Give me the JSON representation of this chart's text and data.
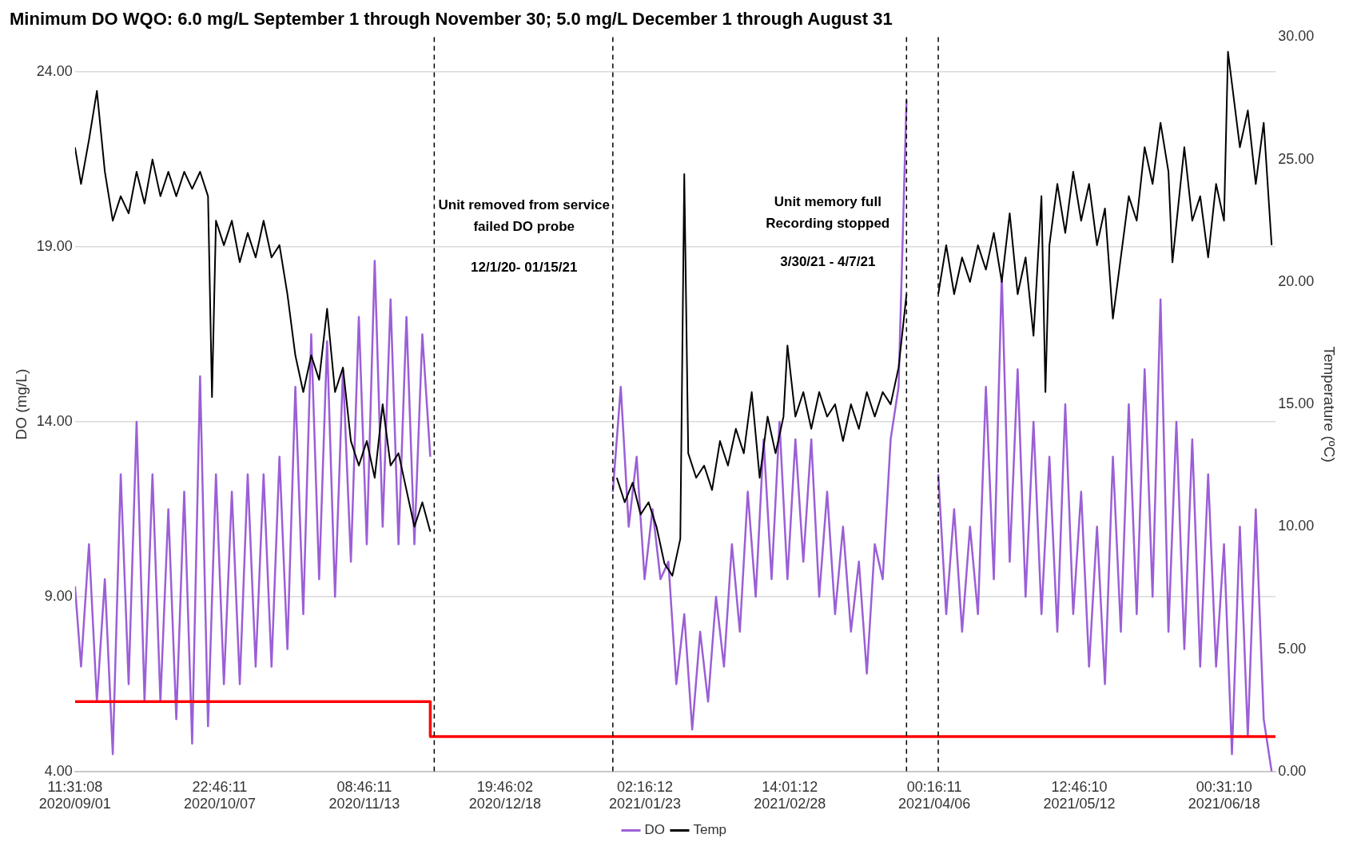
{
  "chart_data": {
    "type": "line",
    "title": "Minimum DO WQO: 6.0 mg/L September 1 through November 30; 5.0 mg/L December 1 through August 31",
    "ylabel": "DO (mg/L)",
    "y2label": "Temperature (ºC)",
    "legend": "bottom",
    "grid": "y",
    "marker": "none",
    "xlim": [
      "2020-09-01T11:31",
      "2021-07-01"
    ],
    "xticks": [
      {
        "value": "2020-09-01T11:31",
        "label": "11:31:08\n2020/09/01"
      },
      {
        "value": "2020-10-07T22:46",
        "label": "22:46:11\n2020/10/07"
      },
      {
        "value": "2020-11-13T08:46",
        "label": "08:46:11\n2020/11/13"
      },
      {
        "value": "2020-12-18T19:46",
        "label": "19:46:02\n2020/12/18"
      },
      {
        "value": "2021-01-23T02:16",
        "label": "02:16:12\n2021/01/23"
      },
      {
        "value": "2021-02-28T14:01",
        "label": "14:01:12\n2021/02/28"
      },
      {
        "value": "2021-04-06T00:16",
        "label": "00:16:11\n2021/04/06"
      },
      {
        "value": "2021-05-12T12:46",
        "label": "12:46:10\n2021/05/12"
      },
      {
        "value": "2021-06-18T00:31",
        "label": "00:31:10\n2021/06/18"
      }
    ],
    "ylim": [
      4,
      25
    ],
    "yticks": [
      {
        "value": 4,
        "label": "4.00"
      },
      {
        "value": 9,
        "label": "9.00"
      },
      {
        "value": 14,
        "label": "14.00"
      },
      {
        "value": 19,
        "label": "19.00"
      },
      {
        "value": 24,
        "label": "24.00"
      }
    ],
    "y2lim": [
      0,
      30
    ],
    "y2ticks": [
      {
        "value": 0,
        "label": "0.00"
      },
      {
        "value": 5,
        "label": "5.00"
      },
      {
        "value": 10,
        "label": "10.00"
      },
      {
        "value": 15,
        "label": "15.00"
      },
      {
        "value": 20,
        "label": "20.00"
      },
      {
        "value": 25,
        "label": "25.00"
      },
      {
        "value": 30,
        "label": "30.00"
      }
    ],
    "series": [
      {
        "name": "DO",
        "color": "#9b5fd6",
        "x": [
          "2020-09-01T11:31",
          "2020-09-03",
          "2020-09-05",
          "2020-09-07",
          "2020-09-09",
          "2020-09-11",
          "2020-09-13",
          "2020-09-15",
          "2020-09-17",
          "2020-09-19",
          "2020-09-21",
          "2020-09-23",
          "2020-09-25",
          "2020-09-27",
          "2020-09-29",
          "2020-10-01",
          "2020-10-03",
          "2020-10-05",
          "2020-10-07",
          "2020-10-09",
          "2020-10-11",
          "2020-10-13",
          "2020-10-15",
          "2020-10-17",
          "2020-10-19",
          "2020-10-21",
          "2020-10-23",
          "2020-10-25",
          "2020-10-27",
          "2020-10-29",
          "2020-10-31",
          "2020-11-02",
          "2020-11-04",
          "2020-11-06",
          "2020-11-08",
          "2020-11-10",
          "2020-11-12",
          "2020-11-14",
          "2020-11-16",
          "2020-11-18",
          "2020-11-20",
          "2020-11-22",
          "2020-11-24",
          "2020-11-26",
          "2020-11-28",
          "2020-11-30",
          "2020-12-15",
          "2021-01-15",
          "2021-01-17",
          "2021-01-19",
          "2021-01-21",
          "2021-01-23",
          "2021-01-25",
          "2021-01-27",
          "2021-01-29",
          "2021-01-31",
          "2021-02-02",
          "2021-02-04",
          "2021-02-06",
          "2021-02-08",
          "2021-02-10",
          "2021-02-12",
          "2021-02-14",
          "2021-02-16",
          "2021-02-18",
          "2021-02-20",
          "2021-02-22",
          "2021-02-24",
          "2021-02-26",
          "2021-02-28",
          "2021-03-02",
          "2021-03-04",
          "2021-03-06",
          "2021-03-08",
          "2021-03-10",
          "2021-03-12",
          "2021-03-14",
          "2021-03-16",
          "2021-03-18",
          "2021-03-20",
          "2021-03-22",
          "2021-03-24",
          "2021-03-26",
          "2021-03-28",
          "2021-03-30",
          "2021-04-03",
          "2021-04-07",
          "2021-04-09",
          "2021-04-11",
          "2021-04-13",
          "2021-04-15",
          "2021-04-17",
          "2021-04-19",
          "2021-04-21",
          "2021-04-23",
          "2021-04-25",
          "2021-04-27",
          "2021-04-29",
          "2021-05-01",
          "2021-05-03",
          "2021-05-05",
          "2021-05-07",
          "2021-05-09",
          "2021-05-11",
          "2021-05-13",
          "2021-05-15",
          "2021-05-17",
          "2021-05-19",
          "2021-05-21",
          "2021-05-23",
          "2021-05-25",
          "2021-05-27",
          "2021-05-29",
          "2021-05-31",
          "2021-06-02",
          "2021-06-04",
          "2021-06-06",
          "2021-06-08",
          "2021-06-10",
          "2021-06-12",
          "2021-06-14",
          "2021-06-16",
          "2021-06-18",
          "2021-06-20",
          "2021-06-22",
          "2021-06-24",
          "2021-06-26",
          "2021-06-28",
          "2021-06-30"
        ],
        "values": [
          9.3,
          7.0,
          10.5,
          6.0,
          9.5,
          4.5,
          12.5,
          6.5,
          14.0,
          6.0,
          12.5,
          6.0,
          11.5,
          5.5,
          12.0,
          4.8,
          15.3,
          5.3,
          12.5,
          6.5,
          12.0,
          6.5,
          12.5,
          7.0,
          12.5,
          7.0,
          13.0,
          7.5,
          15.0,
          8.5,
          16.5,
          9.5,
          16.3,
          9.0,
          15.5,
          10.0,
          17.0,
          10.5,
          18.6,
          11.0,
          17.5,
          10.5,
          17.0,
          10.5,
          16.5,
          13.0,
          null,
          12.0,
          15.0,
          11.0,
          13.0,
          9.5,
          11.5,
          9.5,
          10.0,
          6.5,
          8.5,
          5.2,
          8.0,
          6.0,
          9.0,
          7.0,
          10.5,
          8.0,
          12.0,
          9.0,
          13.5,
          9.5,
          14.0,
          9.5,
          13.5,
          10.0,
          13.5,
          9.0,
          12.0,
          8.5,
          11.0,
          8.0,
          10.0,
          6.8,
          10.5,
          9.5,
          13.5,
          15.0,
          23.2,
          null,
          12.5,
          8.5,
          11.5,
          8.0,
          11.0,
          8.5,
          15.0,
          9.5,
          18.2,
          10.0,
          15.5,
          9.0,
          14.0,
          8.5,
          13.0,
          8.0,
          14.5,
          8.5,
          12.0,
          7.0,
          11.0,
          6.5,
          13.0,
          8.0,
          14.5,
          8.5,
          15.5,
          9.0,
          17.5,
          8.0,
          14.0,
          7.5,
          13.5,
          7.0,
          12.5,
          7.0,
          10.5,
          4.5,
          11.0,
          5.0,
          11.5,
          5.5,
          4.0
        ]
      },
      {
        "name": "Temp",
        "color": "#000000",
        "axis": "y2",
        "x": [
          "2020-09-01T11:31",
          "2020-09-03",
          "2020-09-05",
          "2020-09-07",
          "2020-09-09",
          "2020-09-11",
          "2020-09-13",
          "2020-09-15",
          "2020-09-17",
          "2020-09-19",
          "2020-09-21",
          "2020-09-23",
          "2020-09-25",
          "2020-09-27",
          "2020-09-29",
          "2020-10-01",
          "2020-10-03",
          "2020-10-05",
          "2020-10-06",
          "2020-10-07",
          "2020-10-09",
          "2020-10-11",
          "2020-10-13",
          "2020-10-15",
          "2020-10-17",
          "2020-10-19",
          "2020-10-21",
          "2020-10-23",
          "2020-10-25",
          "2020-10-27",
          "2020-10-29",
          "2020-10-31",
          "2020-11-02",
          "2020-11-04",
          "2020-11-06",
          "2020-11-08",
          "2020-11-10",
          "2020-11-12",
          "2020-11-14",
          "2020-11-16",
          "2020-11-18",
          "2020-11-20",
          "2020-11-22",
          "2020-11-24",
          "2020-11-26",
          "2020-11-28",
          "2020-11-30",
          "2020-12-15",
          "2021-01-16",
          "2021-01-18",
          "2021-01-20",
          "2021-01-22",
          "2021-01-24",
          "2021-01-26",
          "2021-01-28",
          "2021-01-30",
          "2021-02-01",
          "2021-02-02",
          "2021-02-03",
          "2021-02-05",
          "2021-02-07",
          "2021-02-09",
          "2021-02-11",
          "2021-02-13",
          "2021-02-15",
          "2021-02-17",
          "2021-02-19",
          "2021-02-21",
          "2021-02-23",
          "2021-02-25",
          "2021-02-27",
          "2021-02-28",
          "2021-03-02",
          "2021-03-04",
          "2021-03-06",
          "2021-03-08",
          "2021-03-10",
          "2021-03-12",
          "2021-03-14",
          "2021-03-16",
          "2021-03-18",
          "2021-03-20",
          "2021-03-22",
          "2021-03-24",
          "2021-03-26",
          "2021-03-28",
          "2021-03-30",
          "2021-04-03",
          "2021-04-07",
          "2021-04-09",
          "2021-04-11",
          "2021-04-13",
          "2021-04-15",
          "2021-04-17",
          "2021-04-19",
          "2021-04-21",
          "2021-04-23",
          "2021-04-25",
          "2021-04-27",
          "2021-04-29",
          "2021-05-01",
          "2021-05-03",
          "2021-05-04",
          "2021-05-05",
          "2021-05-07",
          "2021-05-09",
          "2021-05-11",
          "2021-05-13",
          "2021-05-15",
          "2021-05-17",
          "2021-05-19",
          "2021-05-21",
          "2021-05-23",
          "2021-05-25",
          "2021-05-27",
          "2021-05-29",
          "2021-05-31",
          "2021-06-02",
          "2021-06-04",
          "2021-06-05",
          "2021-06-08",
          "2021-06-10",
          "2021-06-12",
          "2021-06-14",
          "2021-06-16",
          "2021-06-18",
          "2021-06-19",
          "2021-06-22",
          "2021-06-24",
          "2021-06-26",
          "2021-06-28",
          "2021-06-30"
        ],
        "values": [
          25.5,
          24.0,
          25.8,
          27.8,
          24.5,
          22.5,
          23.5,
          22.8,
          24.5,
          23.2,
          25.0,
          23.5,
          24.5,
          23.5,
          24.5,
          23.8,
          24.5,
          23.5,
          15.3,
          22.5,
          21.5,
          22.5,
          20.8,
          22.0,
          21.0,
          22.5,
          21.0,
          21.5,
          19.5,
          17.0,
          15.5,
          17.0,
          16.0,
          18.9,
          15.5,
          16.5,
          13.5,
          12.5,
          13.5,
          12.0,
          15.0,
          12.5,
          13.0,
          11.5,
          10.0,
          11.0,
          9.8,
          null,
          12.0,
          11.0,
          11.8,
          10.5,
          11.0,
          10.0,
          8.5,
          8.0,
          9.5,
          24.4,
          13.0,
          12.0,
          12.5,
          11.5,
          13.5,
          12.5,
          14.0,
          13.0,
          15.5,
          12.0,
          14.5,
          13.0,
          14.5,
          17.4,
          14.5,
          15.5,
          14.0,
          15.5,
          14.5,
          15.0,
          13.5,
          15.0,
          14.0,
          15.5,
          14.5,
          15.5,
          15.0,
          16.5,
          19.5,
          null,
          19.5,
          21.5,
          19.5,
          21.0,
          20.0,
          21.5,
          20.5,
          22.0,
          20.0,
          22.8,
          19.5,
          21.0,
          17.8,
          23.5,
          15.5,
          21.5,
          24.0,
          22.0,
          24.5,
          22.5,
          24.0,
          21.5,
          23.0,
          18.5,
          21.0,
          23.5,
          22.5,
          25.5,
          24.0,
          26.5,
          24.5,
          20.8,
          25.5,
          22.5,
          23.5,
          21.0,
          24.0,
          22.5,
          29.4,
          25.5,
          27.0,
          24.0,
          26.5,
          21.5
        ]
      },
      {
        "color": "#ff0000",
        "x": [
          "2020-09-01T11:31",
          "2020-11-30",
          "2020-11-30",
          "2021-07-01"
        ],
        "values": [
          6.0,
          6.0,
          5.0,
          5.0
        ]
      }
    ],
    "ref_lines": [
      {
        "axis": "x",
        "value": "2020-12-01",
        "color": "#000000",
        "line_style": "dashed"
      },
      {
        "axis": "x",
        "value": "2021-01-15",
        "color": "#000000",
        "line_style": "dashed"
      },
      {
        "axis": "x",
        "value": "2021-03-30",
        "color": "#000000",
        "line_style": "dashed"
      },
      {
        "axis": "x",
        "value": "2021-04-07",
        "color": "#000000",
        "line_style": "dashed"
      }
    ],
    "annotations": [
      "Unit removed from service\nfailed DO probe",
      "12/1/20- 01/15/21",
      "Unit memory full\nRecording stopped",
      "3/30/21 - 4/7/21"
    ]
  }
}
